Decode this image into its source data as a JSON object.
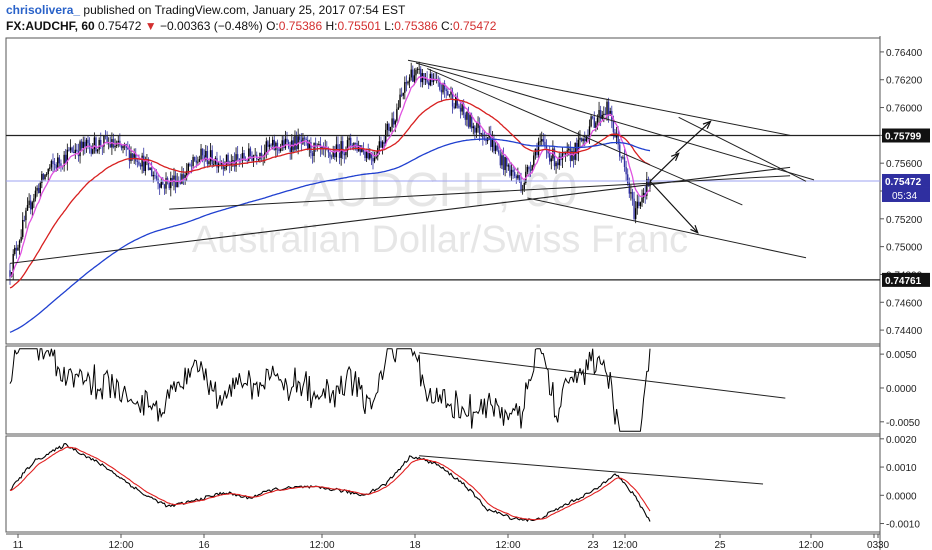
{
  "header": {
    "author": "chrisolivera_",
    "published": "published on TradingView.com, January 25, 2017 07:54 EST",
    "symbol": "FX:AUDCHF, 60",
    "last": "0.75472",
    "change_arrow": "▼",
    "change": "−0.00363 (−0.48%)",
    "open_label": "O:",
    "open": "0.75386",
    "high_label": "H:",
    "high": "0.75501",
    "low_label": "L:",
    "low": "0.75386",
    "close_label": "C:",
    "close": "0.75472"
  },
  "watermark": {
    "symbol": "AUDCHF, 60",
    "name": "Australian Dollar/Swiss Franc"
  },
  "colors": {
    "up": "#000000",
    "down": "#2f2fa0",
    "ema_fast": "#e052e0",
    "ema_mid": "#d82020",
    "ema_slow": "#2040d0",
    "price_line": "#9ea3f0",
    "macd": "#000000",
    "signal": "#e02020"
  },
  "chart_data": [
    {
      "type": "candlestick",
      "panel": "price",
      "ylim": [
        0.743,
        0.765
      ],
      "y_ticks": [
        "0.76400",
        "0.76200",
        "0.76000",
        "0.75800",
        "0.75600",
        "0.75400",
        "0.75200",
        "0.75000",
        "0.74800",
        "0.74600",
        "0.74400"
      ],
      "x_tick_labels": [
        "11",
        "12:00",
        "16",
        "12:00",
        "18",
        "12:00",
        "23",
        "12:00",
        "25",
        "12:00",
        "30",
        "03:"
      ],
      "price_labels": {
        "last": "0.75472",
        "countdown": "05:34",
        "resistance": "0.75799",
        "support": "0.74761"
      },
      "horizontal_levels": [
        0.75799,
        0.74761
      ],
      "current_price": 0.75472,
      "anchors": [
        {
          "t": 0,
          "p": 0.7483
        },
        {
          "t": 4,
          "p": 0.75
        },
        {
          "t": 14,
          "p": 0.7535
        },
        {
          "t": 24,
          "p": 0.7555
        },
        {
          "t": 40,
          "p": 0.757
        },
        {
          "t": 60,
          "p": 0.7575
        },
        {
          "t": 80,
          "p": 0.7565
        },
        {
          "t": 96,
          "p": 0.7545
        },
        {
          "t": 108,
          "p": 0.755
        },
        {
          "t": 120,
          "p": 0.7565
        },
        {
          "t": 140,
          "p": 0.756
        },
        {
          "t": 160,
          "p": 0.757
        },
        {
          "t": 180,
          "p": 0.7575
        },
        {
          "t": 200,
          "p": 0.7565
        },
        {
          "t": 215,
          "p": 0.7575
        },
        {
          "t": 228,
          "p": 0.7565
        },
        {
          "t": 240,
          "p": 0.759
        },
        {
          "t": 252,
          "p": 0.7625
        },
        {
          "t": 262,
          "p": 0.762
        },
        {
          "t": 276,
          "p": 0.761
        },
        {
          "t": 288,
          "p": 0.759
        },
        {
          "t": 300,
          "p": 0.758
        },
        {
          "t": 310,
          "p": 0.756
        },
        {
          "t": 322,
          "p": 0.7545
        },
        {
          "t": 332,
          "p": 0.7575
        },
        {
          "t": 345,
          "p": 0.756
        },
        {
          "t": 356,
          "p": 0.757
        },
        {
          "t": 366,
          "p": 0.759
        },
        {
          "t": 375,
          "p": 0.76
        },
        {
          "t": 384,
          "p": 0.7565
        },
        {
          "t": 392,
          "p": 0.7525
        },
        {
          "t": 398,
          "p": 0.754
        },
        {
          "t": 402,
          "p": 0.7547
        }
      ],
      "candle_count": 403,
      "trendlines": [
        {
          "x": [
            0,
            490
          ],
          "y": [
            0.7488,
            0.7557
          ]
        },
        {
          "x": [
            100,
            490
          ],
          "y": [
            0.7527,
            0.7551
          ]
        },
        {
          "x": [
            250,
            490
          ],
          "y": [
            0.7634,
            0.758
          ]
        },
        {
          "x": [
            255,
            505
          ],
          "y": [
            0.7632,
            0.7548
          ]
        },
        {
          "x": [
            262,
            460
          ],
          "y": [
            0.7628,
            0.753
          ]
        },
        {
          "x": [
            325,
            500
          ],
          "y": [
            0.7535,
            0.7492
          ]
        },
        {
          "x": [
            420,
            500
          ],
          "y": [
            0.7593,
            0.7547
          ]
        }
      ],
      "arrows": [
        {
          "from": [
            402,
            0.7547
          ],
          "to": [
            432,
            0.751
          ]
        },
        {
          "from": [
            402,
            0.7547
          ],
          "to": [
            420,
            0.7567
          ]
        },
        {
          "from": [
            418,
            0.7567
          ],
          "to": [
            440,
            0.759
          ]
        }
      ]
    },
    {
      "type": "line",
      "panel": "oscillator",
      "ylim": [
        -0.0068,
        0.0062
      ],
      "y_ticks": [
        "0.0050",
        "0.0000",
        "-0.0050"
      ],
      "trendlines": [
        {
          "x": [
            257,
            487
          ],
          "y": [
            0.0052,
            -0.0015
          ]
        }
      ]
    },
    {
      "type": "line",
      "panel": "macd",
      "ylim": [
        -0.0013,
        0.0021
      ],
      "y_ticks": [
        "0.0020",
        "0.0010",
        "0.0000",
        "-0.0010"
      ],
      "series": [
        {
          "name": "macd",
          "color_key": "macd"
        },
        {
          "name": "signal",
          "color_key": "signal"
        }
      ],
      "anchors": [
        {
          "t": 0,
          "v": 0.0002
        },
        {
          "t": 15,
          "v": 0.0012
        },
        {
          "t": 35,
          "v": 0.0018
        },
        {
          "t": 60,
          "v": 0.001
        },
        {
          "t": 85,
          "v": 0.0
        },
        {
          "t": 100,
          "v": -0.0004
        },
        {
          "t": 115,
          "v": -0.0002
        },
        {
          "t": 135,
          "v": 0.0001
        },
        {
          "t": 150,
          "v": -0.0001
        },
        {
          "t": 165,
          "v": 0.0002
        },
        {
          "t": 185,
          "v": 0.0003
        },
        {
          "t": 205,
          "v": 0.0002
        },
        {
          "t": 222,
          "v": 0.0
        },
        {
          "t": 236,
          "v": 0.0004
        },
        {
          "t": 252,
          "v": 0.0014
        },
        {
          "t": 268,
          "v": 0.0011
        },
        {
          "t": 285,
          "v": 0.0004
        },
        {
          "t": 300,
          "v": -0.0005
        },
        {
          "t": 315,
          "v": -0.0008
        },
        {
          "t": 330,
          "v": -0.0009
        },
        {
          "t": 350,
          "v": -0.0003
        },
        {
          "t": 368,
          "v": 0.0002
        },
        {
          "t": 380,
          "v": 0.0008
        },
        {
          "t": 392,
          "v": 0.0
        },
        {
          "t": 402,
          "v": -0.0009
        }
      ],
      "trendlines": [
        {
          "x": [
            257,
            473
          ],
          "y": [
            0.0014,
            0.0004
          ]
        }
      ]
    }
  ]
}
